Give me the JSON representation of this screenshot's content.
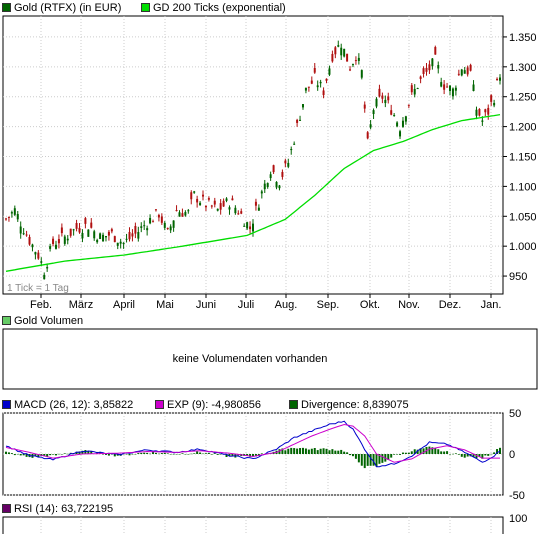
{
  "price_panel": {
    "legend": [
      {
        "label": "Gold (RTFX) (in EUR)",
        "color": "#006400"
      },
      {
        "label": "GD 200 Ticks (exponential)",
        "color": "#00dd00"
      }
    ],
    "note": "1 Tick = 1 Tag"
  },
  "volume_panel": {
    "legend": {
      "label": "Gold Volumen",
      "color": "#66cc66"
    },
    "message": "keine Volumendaten vorhanden"
  },
  "macd_panel": {
    "legend": [
      {
        "label": "MACD (26, 12): 3,85822",
        "color": "#0000cc"
      },
      {
        "label": "EXP (9): -4,980856",
        "color": "#cc00cc"
      },
      {
        "label": "Divergence: 8,839075",
        "color": "#006400"
      }
    ]
  },
  "rsi_panel": {
    "legend": {
      "label": "RSI (14): 63,722195",
      "color": "#660066"
    }
  },
  "chart_data": [
    {
      "type": "line",
      "title": "Gold (RTFX) (in EUR)",
      "x_tick_labels": [
        "Feb.",
        "März",
        "April",
        "Mai",
        "Juni",
        "Juli",
        "Aug.",
        "Sep.",
        "Okt.",
        "Nov.",
        "Dez.",
        "Jan."
      ],
      "ylim": [
        920,
        1385
      ],
      "yticks": [
        950,
        1000,
        1050,
        1100,
        1150,
        1200,
        1250,
        1300,
        1350
      ],
      "ytick_labels": [
        "950",
        "1.000",
        "1.050",
        "1.100",
        "1.150",
        "1.200",
        "1.250",
        "1.300",
        "1.350"
      ],
      "grid": true,
      "series": [
        {
          "name": "Gold (RTFX) (in EUR)",
          "style": "candlestick",
          "up_color": "#006400",
          "down_color": "#b01010",
          "key_points": [
            [
              0,
              1045
            ],
            [
              3,
              1060
            ],
            [
              8,
              1010
            ],
            [
              11,
              985
            ],
            [
              13,
              960
            ],
            [
              16,
              1005
            ],
            [
              20,
              1015
            ],
            [
              24,
              1030
            ],
            [
              28,
              1035
            ],
            [
              32,
              1015
            ],
            [
              36,
              1020
            ],
            [
              40,
              1005
            ],
            [
              44,
              1020
            ],
            [
              48,
              1040
            ],
            [
              52,
              1055
            ],
            [
              55,
              1020
            ],
            [
              58,
              1060
            ],
            [
              62,
              1055
            ],
            [
              64,
              1085
            ],
            [
              68,
              1070
            ],
            [
              72,
              1060
            ],
            [
              76,
              1075
            ],
            [
              79,
              1060
            ],
            [
              83,
              1030
            ],
            [
              86,
              1075
            ],
            [
              90,
              1130
            ],
            [
              93,
              1110
            ],
            [
              96,
              1140
            ],
            [
              99,
              1200
            ],
            [
              102,
              1260
            ],
            [
              105,
              1280
            ],
            [
              108,
              1260
            ],
            [
              111,
              1320
            ],
            [
              114,
              1340
            ],
            [
              117,
              1300
            ],
            [
              119,
              1320
            ],
            [
              121,
              1290
            ],
            [
              123,
              1170
            ],
            [
              125,
              1230
            ],
            [
              128,
              1250
            ],
            [
              131,
              1230
            ],
            [
              134,
              1200
            ],
            [
              137,
              1240
            ],
            [
              140,
              1270
            ],
            [
              143,
              1290
            ],
            [
              146,
              1310
            ],
            [
              149,
              1270
            ],
            [
              152,
              1260
            ],
            [
              155,
              1300
            ],
            [
              158,
              1290
            ],
            [
              160,
              1230
            ],
            [
              162,
              1210
            ],
            [
              164,
              1225
            ],
            [
              166,
              1250
            ],
            [
              168,
              1290
            ]
          ]
        },
        {
          "name": "GD 200 Ticks (exponential)",
          "color": "#00dd00",
          "key_points": [
            [
              0,
              958
            ],
            [
              20,
              975
            ],
            [
              40,
              985
            ],
            [
              60,
              1000
            ],
            [
              82,
              1018
            ],
            [
              95,
              1045
            ],
            [
              105,
              1085
            ],
            [
              115,
              1130
            ],
            [
              125,
              1160
            ],
            [
              135,
              1175
            ],
            [
              145,
              1195
            ],
            [
              155,
              1210
            ],
            [
              168,
              1220
            ]
          ]
        }
      ]
    },
    {
      "type": "line",
      "title": "Gold Volumen",
      "series": []
    },
    {
      "type": "line",
      "title": "MACD",
      "ylim": [
        -50,
        50
      ],
      "yticks": [
        -50,
        0,
        50
      ],
      "ytick_labels": [
        "-50",
        "0",
        "50"
      ],
      "grid": true,
      "series": [
        {
          "name": "MACD (26, 12): 3,85822",
          "color": "#0000cc",
          "key_points": [
            [
              0,
              10
            ],
            [
              8,
              -2
            ],
            [
              16,
              -7
            ],
            [
              26,
              4
            ],
            [
              38,
              -1
            ],
            [
              48,
              5
            ],
            [
              58,
              2
            ],
            [
              66,
              6
            ],
            [
              76,
              -2
            ],
            [
              84,
              -6
            ],
            [
              92,
              6
            ],
            [
              98,
              20
            ],
            [
              104,
              28
            ],
            [
              110,
              36
            ],
            [
              115,
              40
            ],
            [
              118,
              30
            ],
            [
              122,
              6
            ],
            [
              126,
              -15
            ],
            [
              132,
              -12
            ],
            [
              138,
              -2
            ],
            [
              144,
              14
            ],
            [
              150,
              12
            ],
            [
              156,
              2
            ],
            [
              162,
              -10
            ],
            [
              166,
              -2
            ],
            [
              168,
              4
            ]
          ]
        },
        {
          "name": "EXP (9): -4,980856",
          "color": "#cc00cc",
          "key_points": [
            [
              0,
              8
            ],
            [
              8,
              2
            ],
            [
              16,
              -5
            ],
            [
              26,
              0
            ],
            [
              38,
              1
            ],
            [
              48,
              3
            ],
            [
              58,
              2
            ],
            [
              66,
              4
            ],
            [
              76,
              1
            ],
            [
              84,
              -3
            ],
            [
              92,
              2
            ],
            [
              98,
              12
            ],
            [
              104,
              22
            ],
            [
              110,
              30
            ],
            [
              115,
              36
            ],
            [
              118,
              34
            ],
            [
              122,
              22
            ],
            [
              126,
              0
            ],
            [
              132,
              -10
            ],
            [
              138,
              -6
            ],
            [
              144,
              6
            ],
            [
              150,
              10
            ],
            [
              156,
              5
            ],
            [
              162,
              -5
            ],
            [
              166,
              -5
            ],
            [
              168,
              -5
            ]
          ]
        },
        {
          "name": "Divergence: 8,839075",
          "style": "histogram",
          "color": "#006400"
        }
      ]
    },
    {
      "type": "line",
      "title": "RSI (14)",
      "yticks": [
        100
      ],
      "ytick_labels": [
        "100"
      ],
      "series": [
        {
          "name": "RSI (14): 63,722195",
          "color": "#660066",
          "values": [
            63.722195
          ]
        }
      ]
    }
  ]
}
